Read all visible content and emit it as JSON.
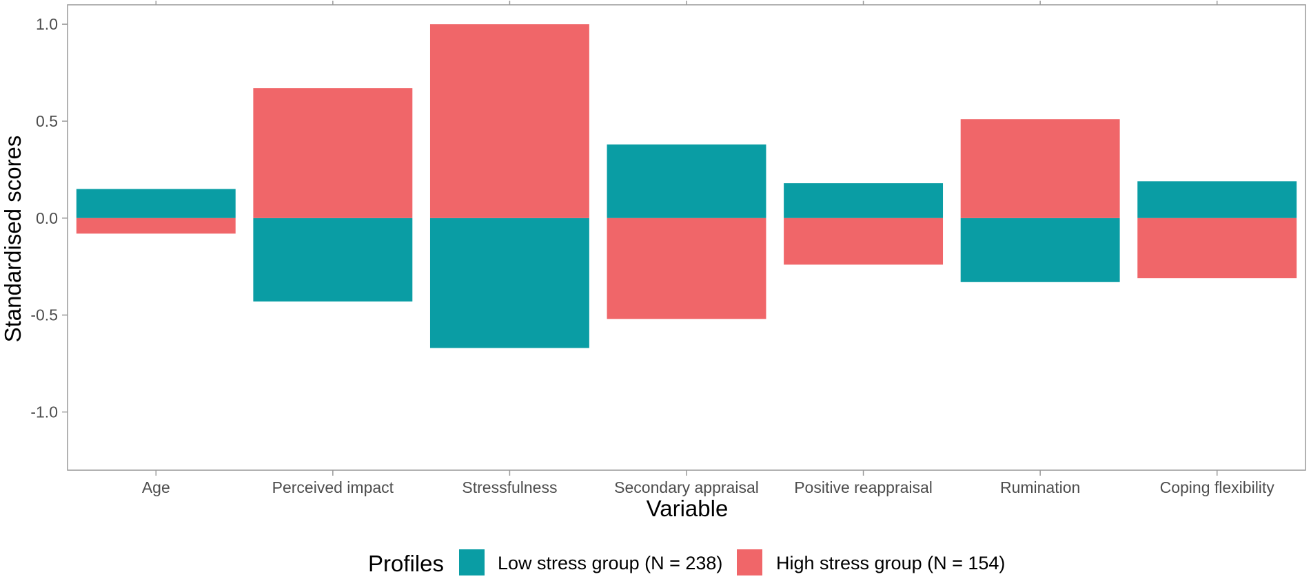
{
  "chart_data": {
    "type": "bar",
    "layout": "diverging",
    "categories": [
      "Age",
      "Perceived impact",
      "Stressfulness",
      "Secondary appraisal",
      "Positive reappraisal",
      "Rumination",
      "Coping flexibility"
    ],
    "series": [
      {
        "name": "Low stress group (N = 238)",
        "color": "#0a9da4",
        "values": [
          0.15,
          -0.43,
          -0.67,
          0.38,
          0.18,
          -0.33,
          0.19
        ]
      },
      {
        "name": "High stress group (N = 154)",
        "color": "#f06669",
        "values": [
          -0.08,
          0.67,
          1.0,
          -0.52,
          -0.24,
          0.51,
          -0.31
        ]
      }
    ],
    "title": "",
    "xlabel": "Variable",
    "ylabel": "Standardised scores",
    "ylim": [
      -1.3,
      1.1
    ],
    "yticks": [
      1.0,
      0.5,
      0.0,
      -0.5,
      -1.0
    ],
    "ytick_labels": [
      "1.0",
      "0.5",
      "0.0",
      "-0.5",
      "-1.0"
    ],
    "legend": {
      "title": "Profiles",
      "position": "bottom"
    },
    "grid": false,
    "axis_color": "#999999"
  }
}
